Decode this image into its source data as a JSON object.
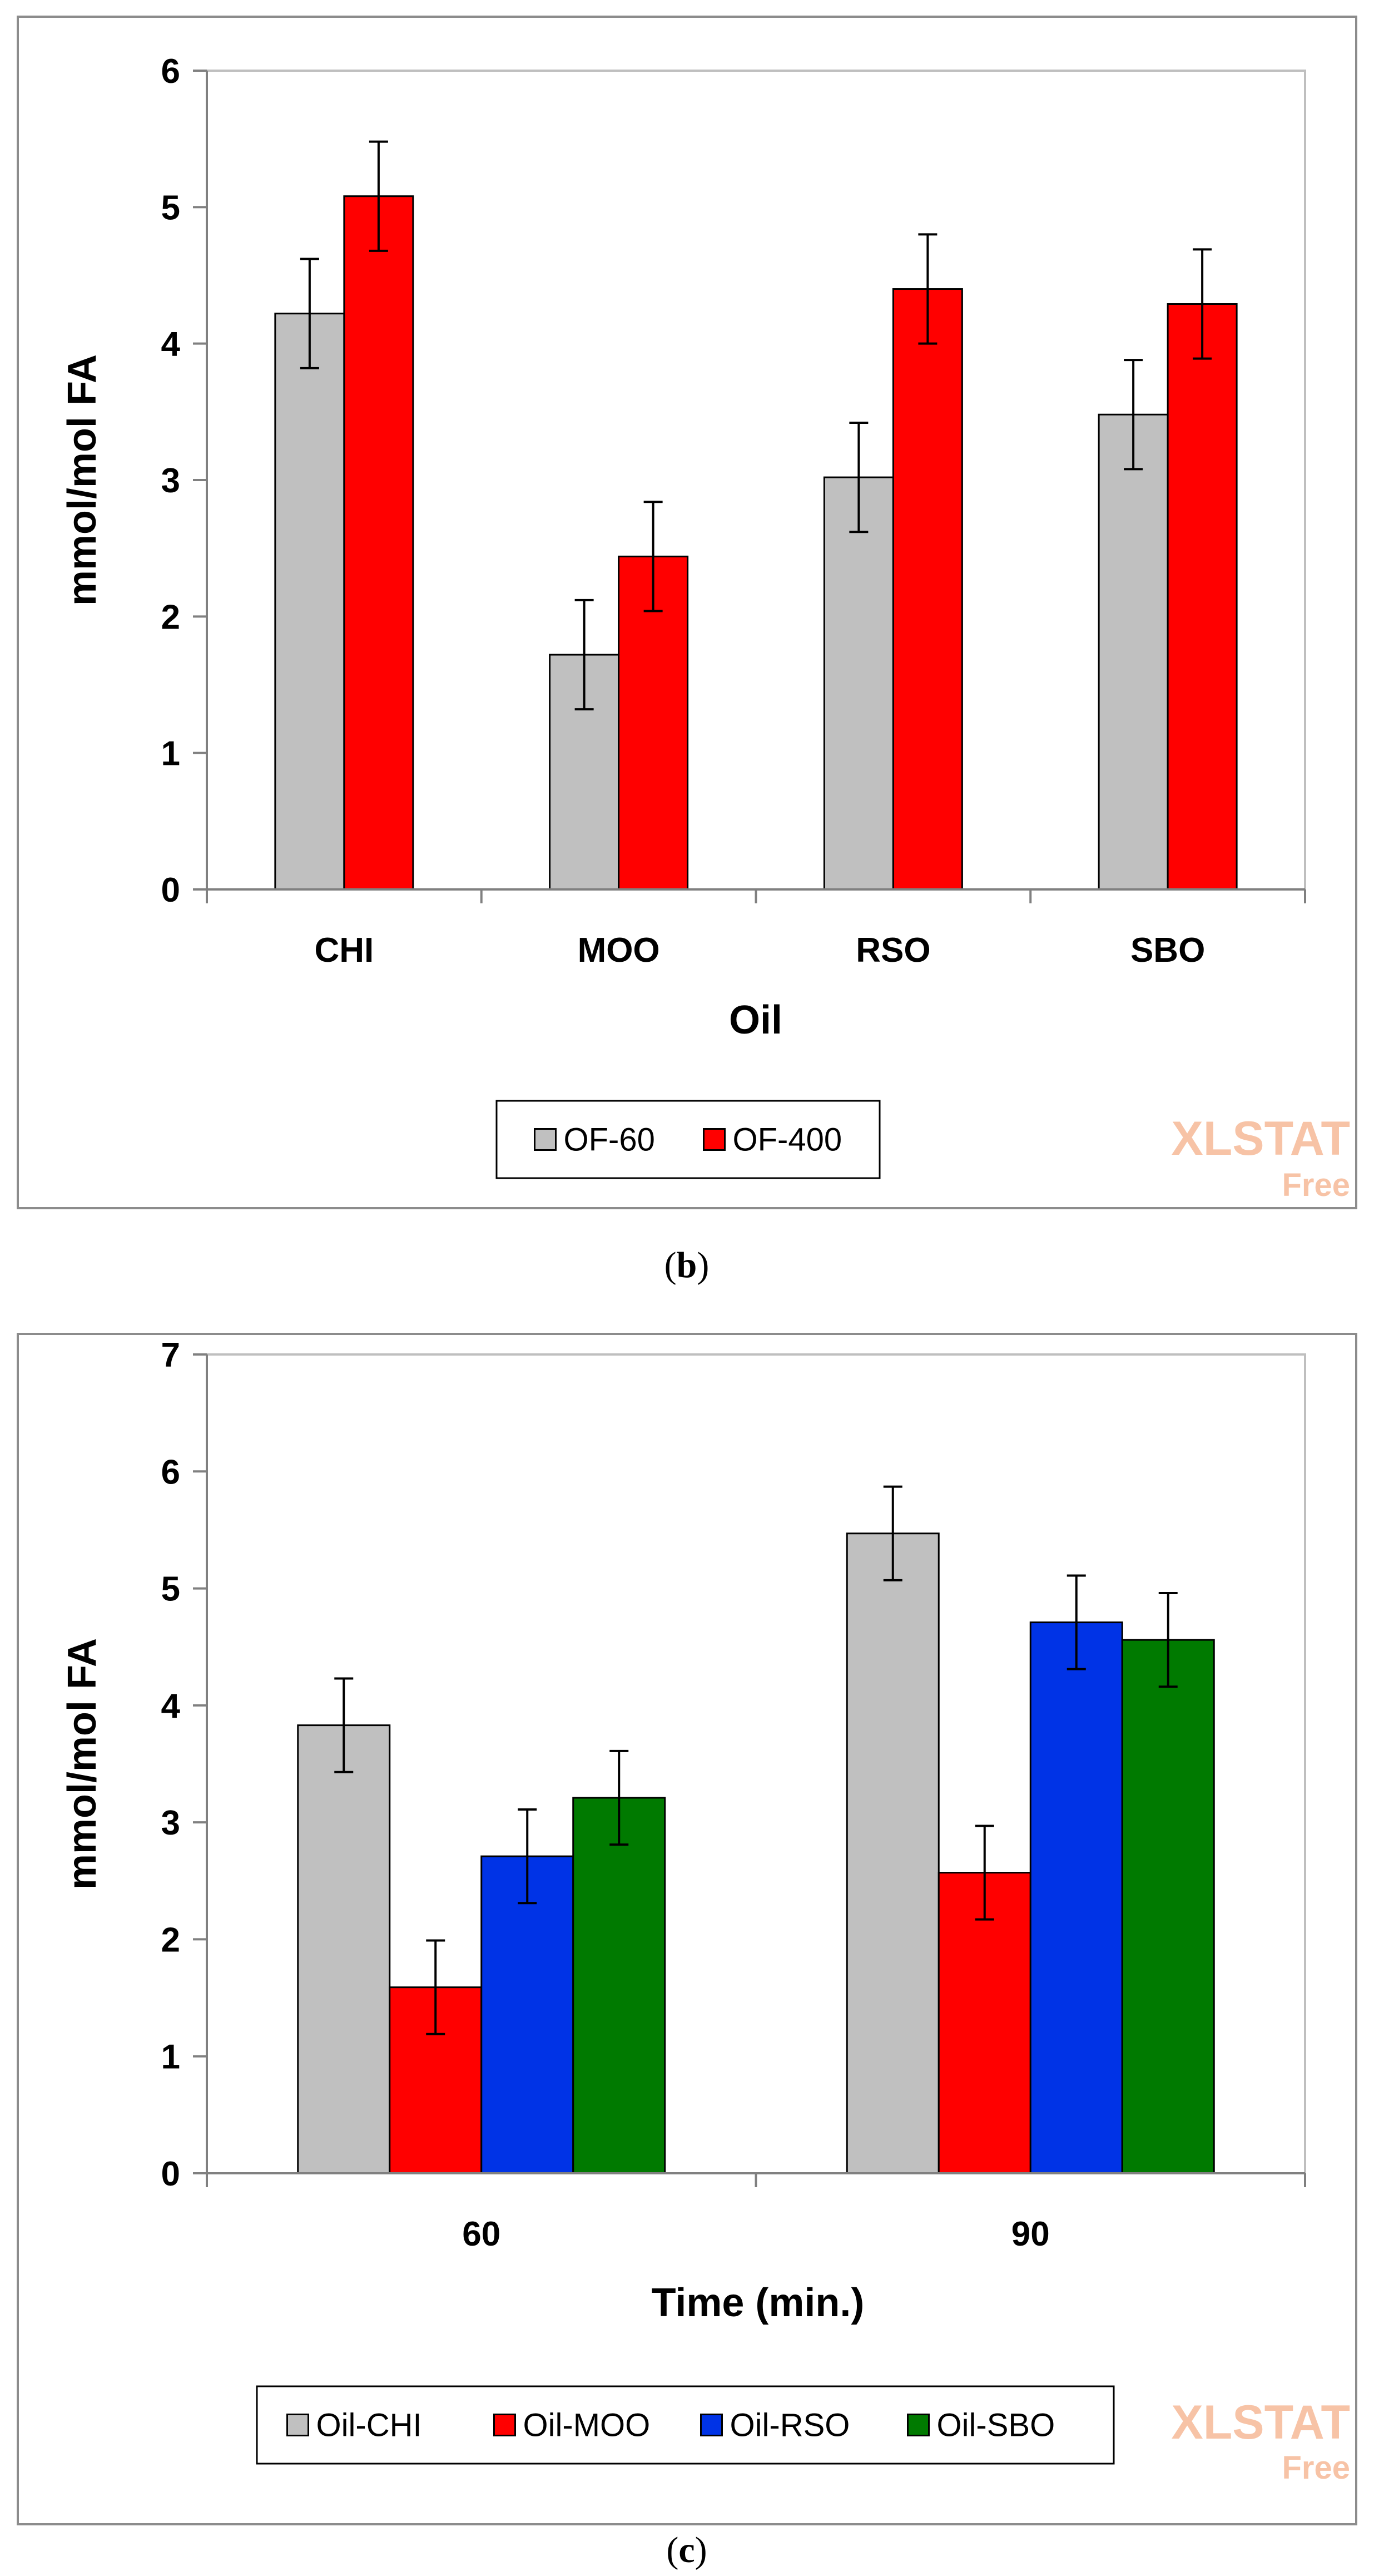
{
  "chart_data": [
    {
      "type": "bar",
      "panel_label": "b",
      "caption_open": "(",
      "caption_close": ")",
      "title": "",
      "xlabel": "Oil",
      "ylabel": "mmol/mol FA",
      "ylim": [
        0,
        6
      ],
      "ytick_labels": [
        "0",
        "1",
        "2",
        "3",
        "4",
        "5",
        "6"
      ],
      "categories": [
        "CHI",
        "MOO",
        "RSO",
        "SBO"
      ],
      "series": [
        {
          "name": "OF-60",
          "color": "#c0c0c0",
          "values": [
            4.22,
            1.72,
            3.02,
            3.48
          ],
          "errors": [
            0.4,
            0.4,
            0.4,
            0.4
          ]
        },
        {
          "name": "OF-400",
          "color": "#ff0000",
          "values": [
            5.08,
            2.44,
            4.4,
            4.29
          ],
          "errors": [
            0.4,
            0.4,
            0.4,
            0.4
          ]
        }
      ],
      "legend_position": "bottom-center",
      "watermark": {
        "main": "XLSTAT",
        "sub": "Free"
      }
    },
    {
      "type": "bar",
      "panel_label": "c",
      "caption_open": "(",
      "caption_close": ")",
      "title": "",
      "xlabel": "Time (min.)",
      "ylabel": "mmol/mol FA",
      "ylim": [
        0,
        7
      ],
      "ytick_labels": [
        "0",
        "1",
        "2",
        "3",
        "4",
        "5",
        "6",
        "7"
      ],
      "categories": [
        "60",
        "90"
      ],
      "series": [
        {
          "name": "Oil-CHI",
          "color": "#c0c0c0",
          "values": [
            3.83,
            5.47
          ],
          "errors": [
            0.4,
            0.4
          ]
        },
        {
          "name": "Oil-MOO",
          "color": "#ff0000",
          "values": [
            1.59,
            2.57
          ],
          "errors": [
            0.4,
            0.4
          ]
        },
        {
          "name": "Oil-RSO",
          "color": "#0033e6",
          "values": [
            2.71,
            4.71
          ],
          "errors": [
            0.4,
            0.4
          ]
        },
        {
          "name": "Oil-SBO",
          "color": "#007a00",
          "values": [
            3.21,
            4.56
          ],
          "errors": [
            0.4,
            0.4
          ]
        }
      ],
      "legend_position": "bottom-center",
      "watermark": {
        "main": "XLSTAT",
        "sub": "Free"
      }
    }
  ]
}
